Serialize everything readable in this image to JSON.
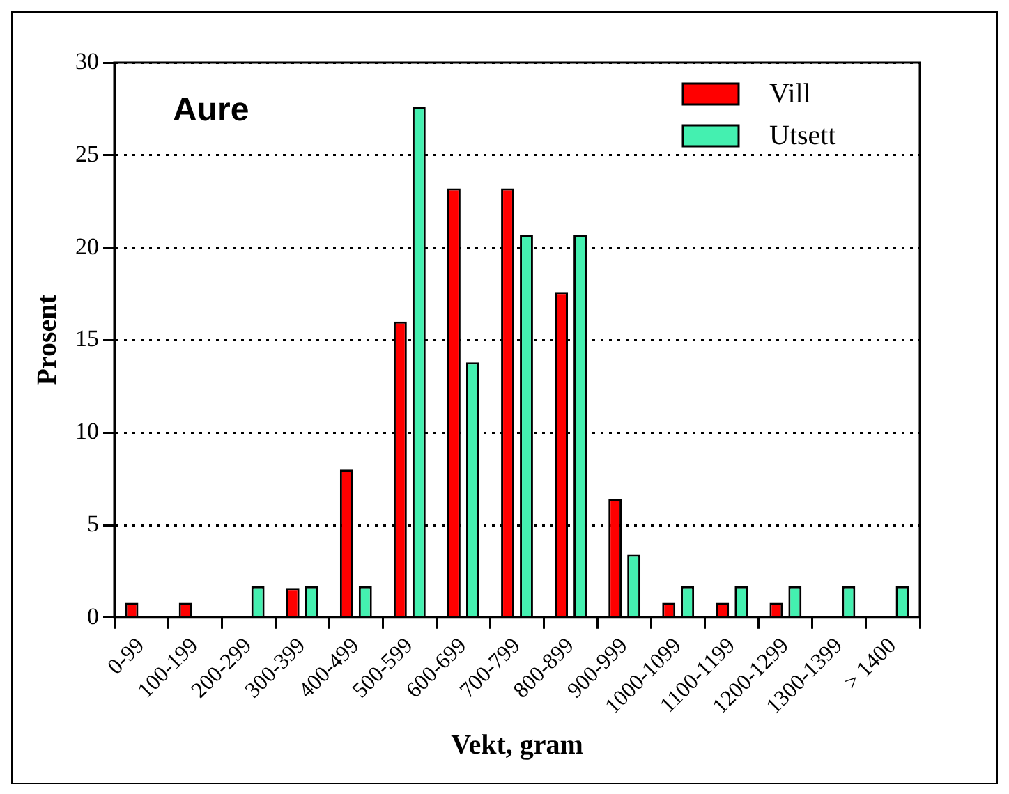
{
  "chart_data": {
    "type": "bar",
    "title": "Aure",
    "xlabel": "Vekt, gram",
    "ylabel": "Prosent",
    "categories": [
      "0-99",
      "100-199",
      "200-299",
      "300-399",
      "400-499",
      "500-599",
      "600-699",
      "700-799",
      "800-899",
      "900-999",
      "1000-1099",
      "1100-1199",
      "1200-1299",
      "1300-1399",
      "> 1400"
    ],
    "series": [
      {
        "name": "Vill",
        "color": "#ff0000",
        "values": [
          0.8,
          0.8,
          0,
          1.6,
          8,
          16,
          23.2,
          23.2,
          17.6,
          6.4,
          0.8,
          0.8,
          0.8,
          0,
          0
        ]
      },
      {
        "name": "Utsett",
        "color": "#44f0b0",
        "values": [
          0,
          0,
          1.7,
          1.7,
          1.7,
          27.6,
          13.8,
          20.7,
          20.7,
          3.4,
          1.7,
          1.7,
          1.7,
          1.7,
          1.7
        ]
      }
    ],
    "ylim": [
      0,
      30
    ],
    "yticks": [
      0,
      5,
      10,
      15,
      20,
      25,
      30
    ],
    "grid": "y",
    "legend": "top right"
  }
}
